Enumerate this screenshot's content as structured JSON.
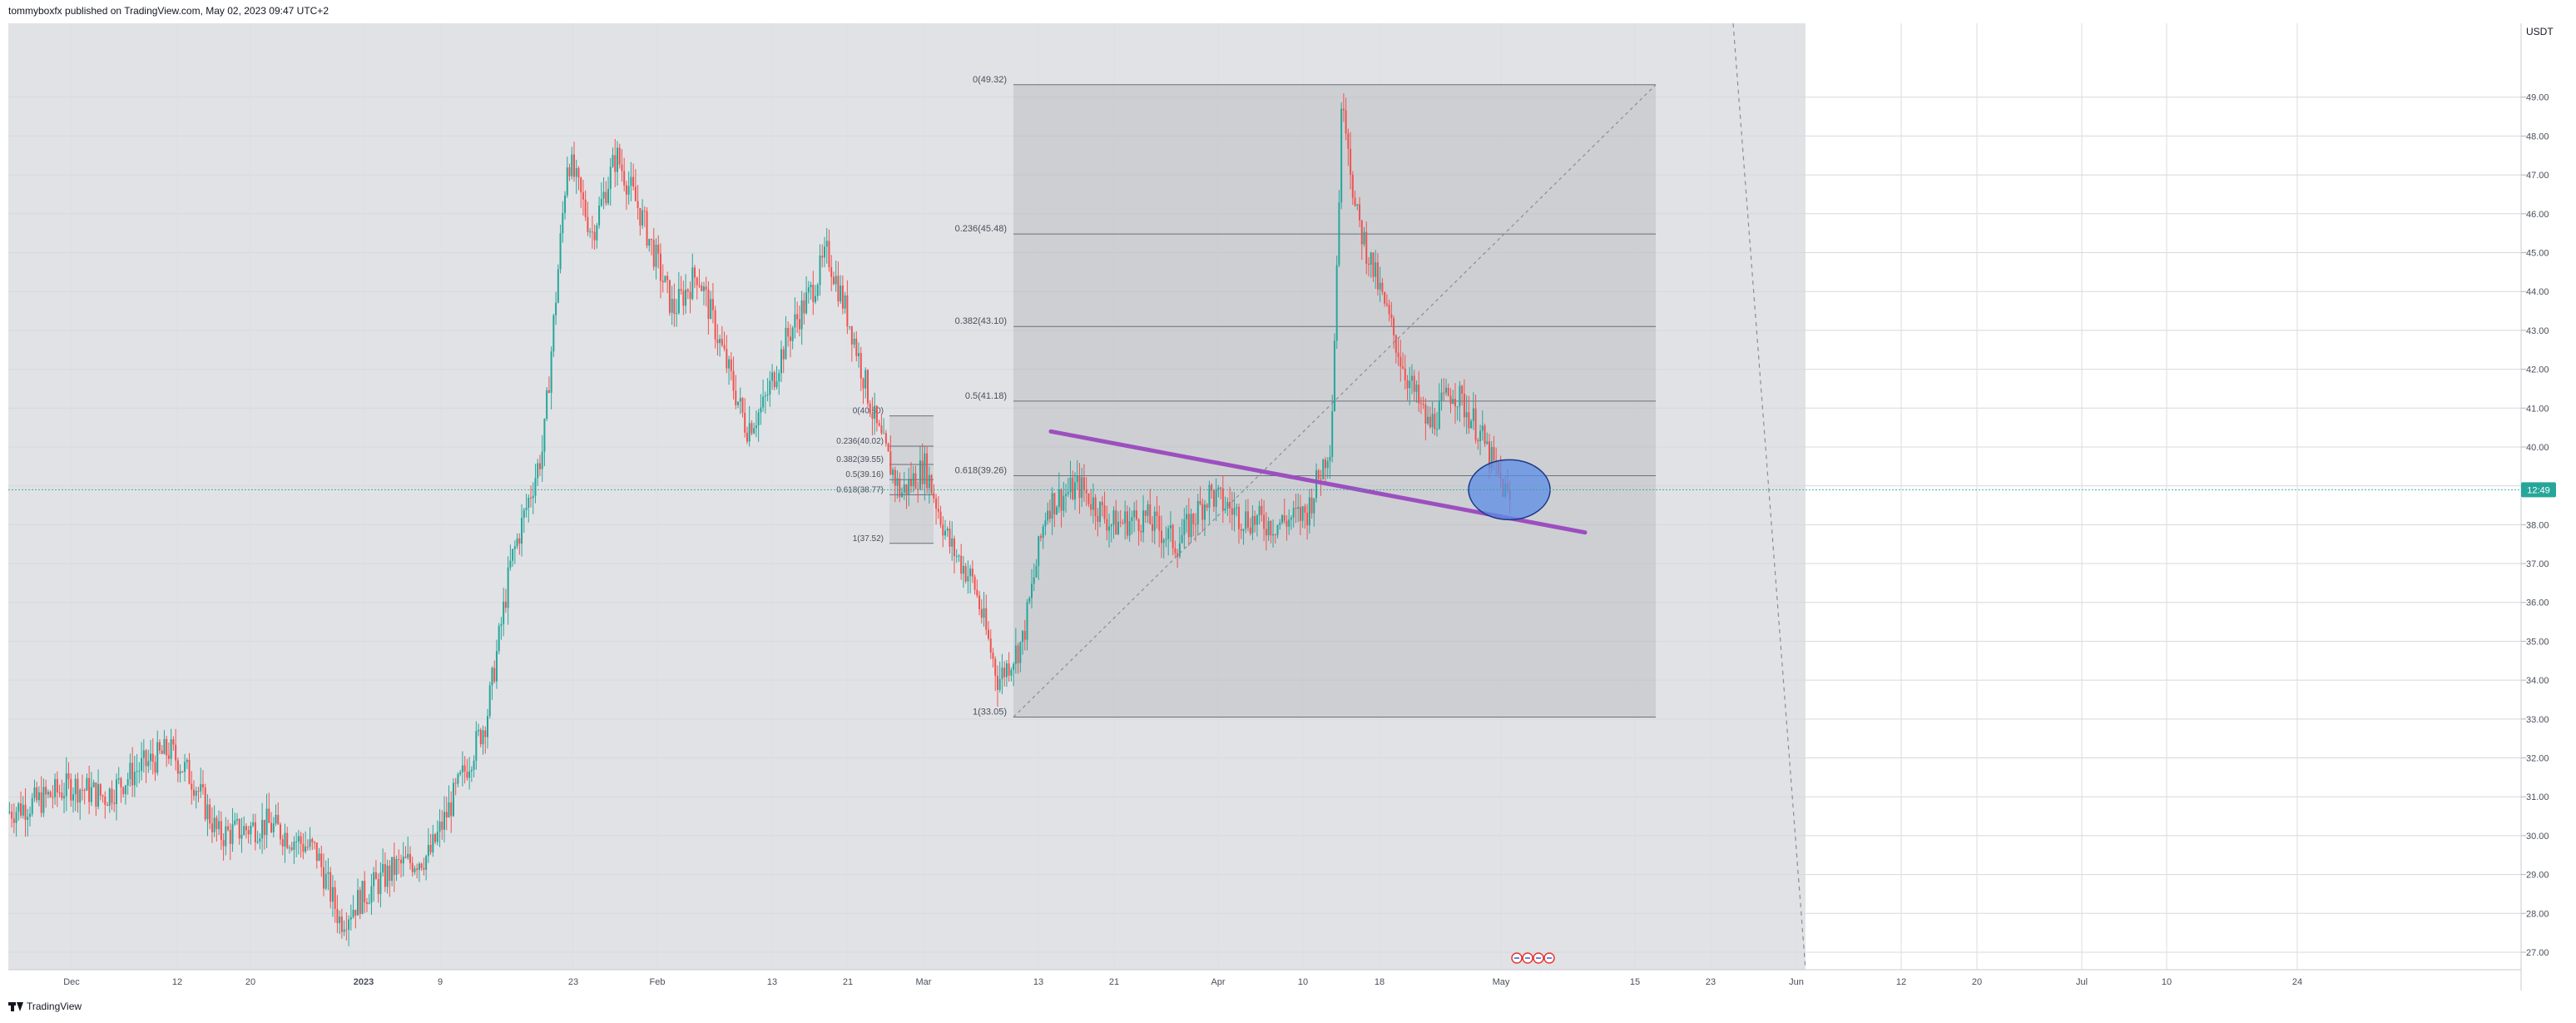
{
  "header": {
    "published_text": "tommyboxfx published on TradingView.com, May 02, 2023 09:47 UTC+2"
  },
  "footer": {
    "brand": "TradingView"
  },
  "colors": {
    "up_candle": "#26a69a",
    "down_candle": "#ef5350",
    "trendline": "#9c4fbf",
    "highlight_circle": "#5b8ee6",
    "price_tag": "#26a69a"
  },
  "chart_data": {
    "type": "candlestick",
    "currency_label": "USDT",
    "y_ticks": [
      27,
      28,
      29,
      30,
      31,
      32,
      33,
      34,
      35,
      36,
      37,
      38,
      39,
      40,
      41,
      42,
      43,
      44,
      45,
      46,
      47,
      48,
      49
    ],
    "y_tick_labels": [
      "27.00",
      "28.00",
      "29.00",
      "30.00",
      "31.00",
      "32.00",
      "33.00",
      "34.00",
      "35.00",
      "36.00",
      "37.00",
      "38.00",
      "39.00",
      "40.00",
      "41.00",
      "42.00",
      "43.00",
      "44.00",
      "45.00",
      "46.00",
      "47.00",
      "48.00",
      "49.00"
    ],
    "ylim": [
      26.55,
      50.9
    ],
    "x_labels": [
      "Dec",
      "12",
      "20",
      "2023",
      "9",
      "23",
      "Feb",
      "13",
      "21",
      "Mar",
      "13",
      "21",
      "Apr",
      "10",
      "18",
      "May",
      "15",
      "23",
      "Jun",
      "12",
      "20",
      "Jul",
      "10",
      "24"
    ],
    "last_price_label": "12:49",
    "last_price": 38.9,
    "price_path": [
      [
        0,
        30.6
      ],
      [
        0.02,
        30.9
      ],
      [
        0.04,
        31.3
      ],
      [
        0.06,
        31.0
      ],
      [
        0.08,
        31.7
      ],
      [
        0.1,
        32.2
      ],
      [
        0.115,
        31.4
      ],
      [
        0.13,
        30.0
      ],
      [
        0.16,
        30.3
      ],
      [
        0.19,
        29.6
      ],
      [
        0.205,
        27.8
      ],
      [
        0.22,
        28.5
      ],
      [
        0.24,
        29.2
      ],
      [
        0.26,
        29.5
      ],
      [
        0.28,
        31.5
      ],
      [
        0.295,
        33.0
      ],
      [
        0.31,
        37.0
      ],
      [
        0.33,
        40.0
      ],
      [
        0.345,
        47.5
      ],
      [
        0.36,
        45.5
      ],
      [
        0.375,
        47.5
      ],
      [
        0.39,
        46.0
      ],
      [
        0.41,
        43.5
      ],
      [
        0.425,
        44.5
      ],
      [
        0.44,
        42.5
      ],
      [
        0.455,
        40.5
      ],
      [
        0.465,
        41.0
      ],
      [
        0.48,
        42.8
      ],
      [
        0.495,
        44.0
      ],
      [
        0.505,
        45.0
      ],
      [
        0.52,
        43.0
      ],
      [
        0.535,
        40.5
      ],
      [
        0.55,
        38.8
      ],
      [
        0.565,
        39.5
      ],
      [
        0.58,
        37.5
      ],
      [
        0.595,
        36.5
      ],
      [
        0.61,
        34.0
      ],
      [
        0.625,
        35.0
      ],
      [
        0.64,
        38.5
      ],
      [
        0.66,
        39.0
      ],
      [
        0.68,
        38.0
      ],
      [
        0.7,
        38.2
      ],
      [
        0.72,
        37.5
      ],
      [
        0.74,
        38.8
      ],
      [
        0.76,
        38.2
      ],
      [
        0.78,
        38.0
      ],
      [
        0.8,
        38.3
      ],
      [
        0.815,
        40.2
      ],
      [
        0.822,
        49.3
      ],
      [
        0.83,
        46.0
      ],
      [
        0.845,
        44.0
      ],
      [
        0.86,
        42.0
      ],
      [
        0.875,
        40.5
      ],
      [
        0.89,
        41.5
      ],
      [
        0.905,
        40.5
      ],
      [
        0.915,
        39.5
      ],
      [
        0.925,
        38.6
      ]
    ],
    "fib_large": {
      "levels": [
        {
          "label": "0(49.32)",
          "price": 49.32
        },
        {
          "label": "0.236(45.48)",
          "price": 45.48
        },
        {
          "label": "0.382(43.10)",
          "price": 43.1
        },
        {
          "label": "0.5(41.18)",
          "price": 41.18
        },
        {
          "label": "0.618(39.26)",
          "price": 39.26
        },
        {
          "label": "1(33.05)",
          "price": 33.05
        }
      ]
    },
    "fib_small": {
      "levels": [
        {
          "label": "0(40.80)",
          "price": 40.8
        },
        {
          "label": "0.236(40.02)",
          "price": 40.02
        },
        {
          "label": "0.382(39.55)",
          "price": 39.55
        },
        {
          "label": "0.5(39.16)",
          "price": 39.16
        },
        {
          "label": "0.618(38.77)",
          "price": 38.77
        },
        {
          "label": "1(37.52)",
          "price": 37.52
        }
      ]
    },
    "trendline": {
      "start_price": 40.4,
      "end_price": 37.8
    },
    "highlight_circle": {
      "center_price": 38.9
    }
  }
}
